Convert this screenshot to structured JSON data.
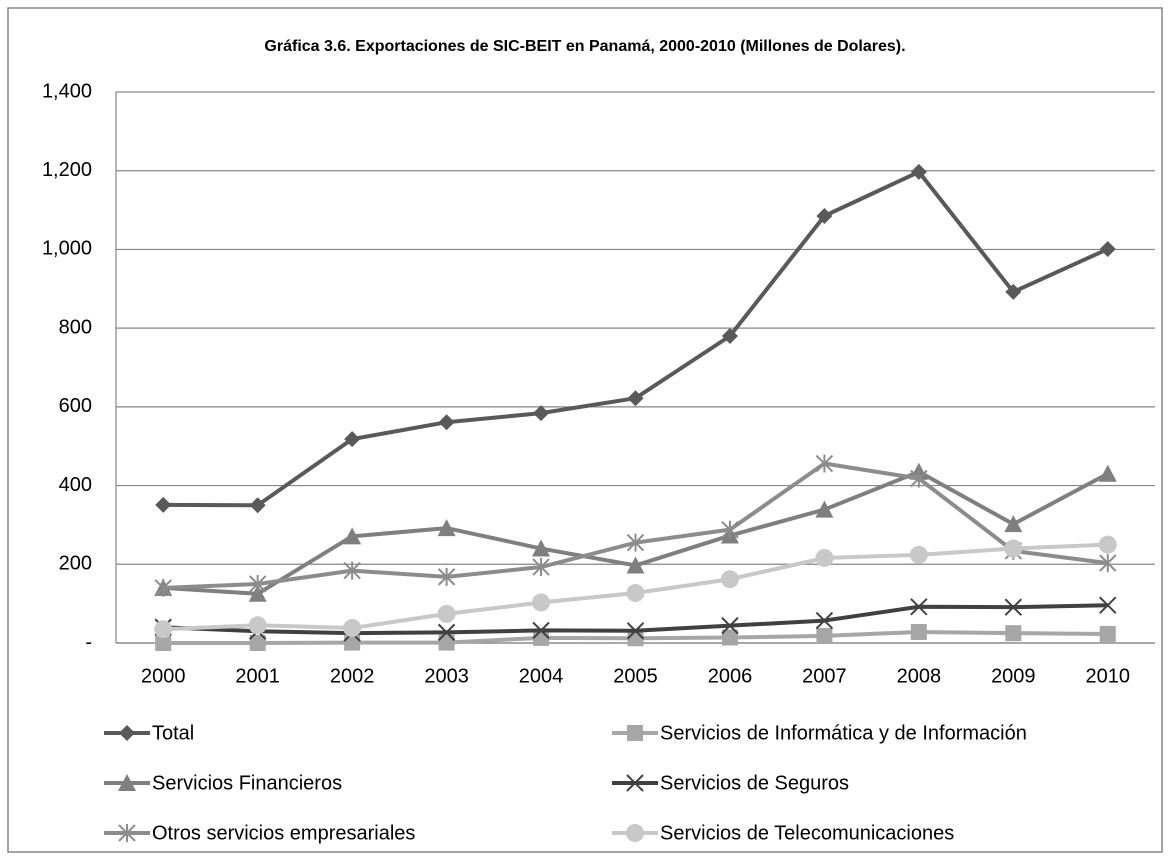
{
  "chart_data": {
    "type": "line",
    "title": "Gráfica 3.6. Exportaciones de SIC-BEIT en Panamá, 2000-2010 (Millones de Dolares).",
    "categories": [
      "2000",
      "2001",
      "2002",
      "2003",
      "2004",
      "2005",
      "2006",
      "2007",
      "2008",
      "2009",
      "2010"
    ],
    "series": [
      {
        "name": "Total",
        "color": "#595959",
        "marker": "diamond",
        "values": [
          351,
          350,
          518,
          561,
          584,
          622,
          780,
          1085,
          1197,
          892,
          1001
        ]
      },
      {
        "name": "Servicios de Informática y de Información",
        "color": "#a6a6a6",
        "marker": "square",
        "values": [
          0,
          0,
          1,
          1,
          13,
          12,
          14,
          18,
          28,
          25,
          23
        ]
      },
      {
        "name": "Servicios Financieros",
        "color": "#7f7f7f",
        "marker": "triangle",
        "values": [
          140,
          125,
          271,
          292,
          240,
          197,
          273,
          339,
          435,
          302,
          430
        ]
      },
      {
        "name": "Servicios de Seguros",
        "color": "#404040",
        "marker": "x",
        "values": [
          40,
          30,
          25,
          27,
          32,
          31,
          44,
          57,
          92,
          91,
          96
        ]
      },
      {
        "name": "Otros servicios empresariales",
        "color": "#8c8c8c",
        "marker": "star",
        "values": [
          140,
          150,
          184,
          168,
          193,
          255,
          288,
          456,
          418,
          234,
          203
        ]
      },
      {
        "name": "Servicios de Telecomunicaciones",
        "color": "#c8c8c8",
        "marker": "circle",
        "values": [
          35,
          45,
          38,
          74,
          103,
          127,
          162,
          216,
          224,
          240,
          250
        ]
      }
    ],
    "ylim": [
      0,
      1400
    ],
    "yticks": [
      {
        "value": 0,
        "label": "-"
      },
      200,
      400,
      600,
      800,
      {
        "value": 1000,
        "label": "1,000"
      },
      {
        "value": 1200,
        "label": "1,200"
      },
      {
        "value": 1400,
        "label": "1,400"
      }
    ],
    "grid": true,
    "legend": "bottom"
  }
}
